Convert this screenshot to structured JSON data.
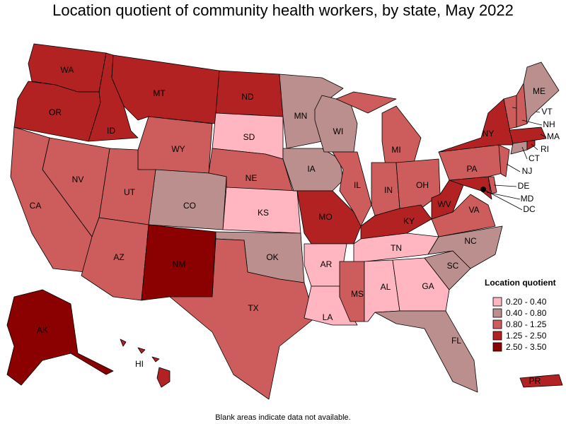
{
  "title": "Location quotient of community health workers, by state, May 2022",
  "legend": {
    "title": "Location quotient",
    "items": [
      {
        "label": "0.20 - 0.40",
        "color": "#ffb6c1"
      },
      {
        "label": "0.40 - 0.80",
        "color": "#bc8f8f"
      },
      {
        "label": "0.80 - 1.25",
        "color": "#cd5c5c"
      },
      {
        "label": "1.25 - 2.50",
        "color": "#b22222"
      },
      {
        "label": "2.50 - 3.50",
        "color": "#8b0000"
      }
    ]
  },
  "states": [
    {
      "label": "WA",
      "color": "#b22222"
    },
    {
      "label": "OR",
      "color": "#b22222"
    },
    {
      "label": "ID",
      "color": "#b22222"
    },
    {
      "label": "MT",
      "color": "#b22222"
    },
    {
      "label": "ND",
      "color": "#b22222"
    },
    {
      "label": "SD",
      "color": "#ffb6c1"
    },
    {
      "label": "WY",
      "color": "#cd5c5c"
    },
    {
      "label": "NE",
      "color": "#cd5c5c"
    },
    {
      "label": "KS",
      "color": "#ffb6c1"
    },
    {
      "label": "CO",
      "color": "#bc8f8f"
    },
    {
      "label": "UT",
      "color": "#cd5c5c"
    },
    {
      "label": "NV",
      "color": "#cd5c5c"
    },
    {
      "label": "CA",
      "color": "#cd5c5c"
    },
    {
      "label": "AZ",
      "color": "#cd5c5c"
    },
    {
      "label": "NM",
      "color": "#8b0000"
    },
    {
      "label": "OK",
      "color": "#bc8f8f"
    },
    {
      "label": "TX",
      "color": "#cd5c5c"
    },
    {
      "label": "MN",
      "color": "#bc8f8f"
    },
    {
      "label": "IA",
      "color": "#bc8f8f"
    },
    {
      "label": "MO",
      "color": "#b22222"
    },
    {
      "label": "AR",
      "color": "#ffb6c1"
    },
    {
      "label": "LA",
      "color": "#ffb6c1"
    },
    {
      "label": "WI",
      "color": "#bc8f8f"
    },
    {
      "label": "IL",
      "color": "#cd5c5c"
    },
    {
      "label": "MI",
      "color": "#cd5c5c"
    },
    {
      "label": "IN",
      "color": "#cd5c5c"
    },
    {
      "label": "OH",
      "color": "#cd5c5c"
    },
    {
      "label": "KY",
      "color": "#b22222"
    },
    {
      "label": "TN",
      "color": "#ffb6c1"
    },
    {
      "label": "MS",
      "color": "#cd5c5c"
    },
    {
      "label": "AL",
      "color": "#ffb6c1"
    },
    {
      "label": "GA",
      "color": "#ffb6c1"
    },
    {
      "label": "FL",
      "color": "#bc8f8f"
    },
    {
      "label": "SC",
      "color": "#bc8f8f"
    },
    {
      "label": "NC",
      "color": "#bc8f8f"
    },
    {
      "label": "VA",
      "color": "#cd5c5c"
    },
    {
      "label": "WV",
      "color": "#b22222"
    },
    {
      "label": "MD",
      "color": "#b22222"
    },
    {
      "label": "DE",
      "color": "#cd5c5c"
    },
    {
      "label": "PA",
      "color": "#cd5c5c"
    },
    {
      "label": "NJ",
      "color": "#cd5c5c"
    },
    {
      "label": "NY",
      "color": "#b22222"
    },
    {
      "label": "CT",
      "color": "#bc8f8f"
    },
    {
      "label": "RI",
      "color": "#b22222"
    },
    {
      "label": "MA",
      "color": "#b22222"
    },
    {
      "label": "VT",
      "color": "#cd5c5c"
    },
    {
      "label": "NH",
      "color": "#cd5c5c"
    },
    {
      "label": "ME",
      "color": "#bc8f8f"
    },
    {
      "label": "AK",
      "color": "#8b0000"
    },
    {
      "label": "HI",
      "color": "#b22222"
    },
    {
      "label": "PR",
      "color": "#b22222"
    },
    {
      "label": "DC",
      "color": "#8b0000"
    }
  ],
  "footnote": "Blank areas indicate data not available."
}
